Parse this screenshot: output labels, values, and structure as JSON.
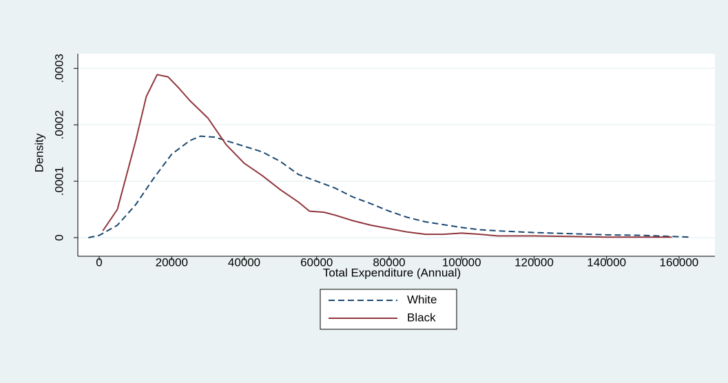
{
  "chart_data": {
    "type": "line",
    "x_label": "Total Expenditure (Annual)",
    "y_label": "Density",
    "xlim": [
      -5900,
      169900
    ],
    "ylim": [
      -3.3e-05,
      0.000326
    ],
    "xticks": [
      0,
      20000,
      40000,
      60000,
      80000,
      100000,
      120000,
      140000,
      160000
    ],
    "yticks": [
      0,
      {
        "value": 0.0001,
        "label": ".0001"
      },
      {
        "value": 0.0002,
        "label": ".0002"
      },
      {
        "value": 0.0003,
        "label": ".0003"
      }
    ],
    "grid": true,
    "legend": "bottom",
    "series": [
      {
        "name": "White",
        "color": "#1a476f",
        "dash": true,
        "x": [
          -3000,
          0,
          5000,
          10000,
          15000,
          20000,
          25000,
          28000,
          32000,
          36000,
          40000,
          45000,
          50000,
          55000,
          60000,
          65000,
          70000,
          75000,
          80000,
          85000,
          90000,
          95000,
          100000,
          105000,
          110000,
          120000,
          130000,
          140000,
          150000,
          163000
        ],
        "values": [
          0,
          4e-06,
          2.2e-05,
          5.8e-05,
          0.000105,
          0.000148,
          0.000172,
          0.00018,
          0.000178,
          0.00017,
          0.000162,
          0.000152,
          0.000135,
          0.000112,
          0.0001,
          8.8e-05,
          7.2e-05,
          6e-05,
          4.7e-05,
          3.6e-05,
          2.8e-05,
          2.3e-05,
          1.8e-05,
          1.4e-05,
          1.2e-05,
          9e-06,
          7e-06,
          5e-06,
          4e-06,
          1e-06
        ]
      },
      {
        "name": "Black",
        "color": "#90353b",
        "dash": false,
        "x": [
          1000,
          5000,
          10000,
          13000,
          16000,
          19000,
          22000,
          25000,
          30000,
          35000,
          40000,
          45000,
          50000,
          55000,
          58000,
          62000,
          65000,
          70000,
          75000,
          80000,
          85000,
          90000,
          95000,
          100000,
          105000,
          110000,
          120000,
          130000,
          140000,
          150000,
          158000
        ],
        "values": [
          1.2e-05,
          5e-05,
          0.00017,
          0.00025,
          0.000289,
          0.000285,
          0.000265,
          0.000243,
          0.000212,
          0.000165,
          0.000132,
          0.00011,
          8.5e-05,
          6.3e-05,
          4.7e-05,
          4.5e-05,
          4e-05,
          3e-05,
          2.2e-05,
          1.6e-05,
          1e-05,
          6e-06,
          6e-06,
          8e-06,
          6e-06,
          3e-06,
          3e-06,
          2e-06,
          1e-06,
          1e-06,
          1e-06
        ]
      }
    ]
  }
}
